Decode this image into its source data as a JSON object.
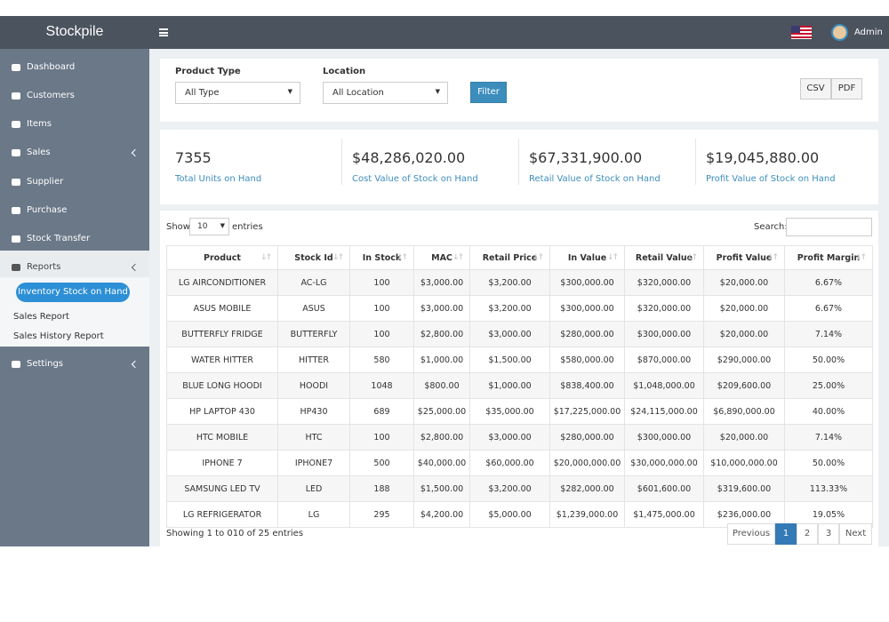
{
  "header": {
    "brand": "Stockpile",
    "user": "Admin"
  },
  "sidebar": {
    "items": [
      "Dashboard",
      "Customers",
      "Items",
      "Sales",
      "Supplier",
      "Purchase",
      "Stock Transfer",
      "Reports"
    ],
    "submenu": [
      "Inventory Stock on Hand",
      "Sales Report",
      "Sales History Report"
    ],
    "settings": "Settings"
  },
  "filters": {
    "product_type_label": "Product Type",
    "product_type_value": "All Type",
    "location_label": "Location",
    "location_value": "All Location",
    "filter_button": "Filter",
    "export_buttons": [
      "CSV",
      "PDF"
    ]
  },
  "summary": [
    {
      "value": "7355",
      "label": "Total Units on Hand"
    },
    {
      "value": "$48,286,020.00",
      "label": "Cost Value of Stock on Hand"
    },
    {
      "value": "$67,331,900.00",
      "label": "Retail Value of Stock on Hand"
    },
    {
      "value": "$19,045,880.00",
      "label": "Profit Value of Stock on Hand"
    }
  ],
  "table": {
    "show": "Show",
    "page_length": "10",
    "entries": "entries",
    "search": "Search:",
    "columns": [
      "Product",
      "Stock Id",
      "In Stock",
      "MAC",
      "Retail Price",
      "In Value",
      "Retail Value",
      "Profit Value",
      "Profit Margin"
    ],
    "rows": [
      [
        "LG AIRCONDITIONER",
        "AC-LG",
        "100",
        "$3,000.00",
        "$3,200.00",
        "$300,000.00",
        "$320,000.00",
        "$20,000.00",
        "6.67%"
      ],
      [
        "ASUS MOBILE",
        "ASUS",
        "100",
        "$3,000.00",
        "$3,200.00",
        "$300,000.00",
        "$320,000.00",
        "$20,000.00",
        "6.67%"
      ],
      [
        "BUTTERFLY FRIDGE",
        "BUTTERFLY",
        "100",
        "$2,800.00",
        "$3,000.00",
        "$280,000.00",
        "$300,000.00",
        "$20,000.00",
        "7.14%"
      ],
      [
        "WATER HITTER",
        "HITTER",
        "580",
        "$1,000.00",
        "$1,500.00",
        "$580,000.00",
        "$870,000.00",
        "$290,000.00",
        "50.00%"
      ],
      [
        "BLUE LONG HOODI",
        "HOODI",
        "1048",
        "$800.00",
        "$1,000.00",
        "$838,400.00",
        "$1,048,000.00",
        "$209,600.00",
        "25.00%"
      ],
      [
        "HP LAPTOP 430",
        "HP430",
        "689",
        "$25,000.00",
        "$35,000.00",
        "$17,225,000.00",
        "$24,115,000.00",
        "$6,890,000.00",
        "40.00%"
      ],
      [
        "HTC MOBILE",
        "HTC",
        "100",
        "$2,800.00",
        "$3,000.00",
        "$280,000.00",
        "$300,000.00",
        "$20,000.00",
        "7.14%"
      ],
      [
        "IPHONE 7",
        "IPHONE7",
        "500",
        "$40,000.00",
        "$60,000.00",
        "$20,000,000.00",
        "$30,000,000.00",
        "$10,000,000.00",
        "50.00%"
      ],
      [
        "SAMSUNG LED TV",
        "LED",
        "188",
        "$1,500.00",
        "$3,200.00",
        "$282,000.00",
        "$601,600.00",
        "$319,600.00",
        "113.33%"
      ],
      [
        "LG REFRIGERATOR",
        "LG",
        "295",
        "$4,200.00",
        "$5,000.00",
        "$1,239,000.00",
        "$1,475,000.00",
        "$236,000.00",
        "19.05%"
      ]
    ]
  },
  "footer": {
    "info": "Showing 1 to 010 of 25 entries",
    "pagination": [
      "Previous",
      "1",
      "2",
      "3",
      "Next"
    ]
  }
}
